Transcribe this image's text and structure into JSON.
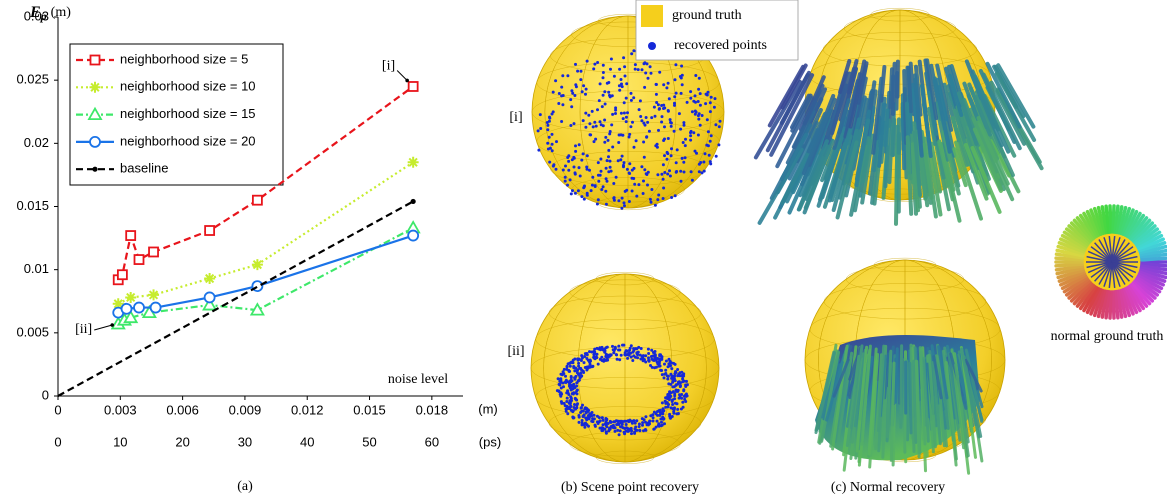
{
  "chart_data": {
    "type": "line",
    "y_label": {
      "symbol": "E",
      "subscript": "p",
      "unit": "(m)"
    },
    "x_unit": "(m)",
    "x2_unit": "(ps)",
    "x_label": "noise level",
    "caption": "(a)",
    "xlim": [
      0,
      0.0195
    ],
    "xticks": [
      0,
      0.003,
      0.006,
      0.009,
      0.012,
      0.015,
      0.018
    ],
    "x2lim": [
      0,
      65
    ],
    "x2ticks": [
      0,
      10,
      20,
      30,
      40,
      50,
      60
    ],
    "ylim": [
      0,
      0.03
    ],
    "yticks": [
      0,
      0.005,
      0.01,
      0.015,
      0.02,
      0.025,
      0.03
    ],
    "grid": false,
    "legend": "upper left",
    "annotations": [
      {
        "text": "[i]",
        "series": 0,
        "point": 7
      },
      {
        "text": "[ii]",
        "series": 2,
        "point": 0
      }
    ],
    "series": [
      {
        "name": "neighborhood size = 5",
        "color": "#e8141b",
        "marker": "square",
        "line_style": "dashed",
        "x": [
          0.0029,
          0.0031,
          0.0035,
          0.0039,
          0.0046,
          0.0073,
          0.0096,
          0.0171
        ],
        "values": [
          0.0092,
          0.0096,
          0.0127,
          0.0108,
          0.0114,
          0.0131,
          0.0155,
          0.0245
        ]
      },
      {
        "name": "neighborhood size = 10",
        "color": "#c6ec2e",
        "marker": "asterisk",
        "line_style": "dotted",
        "x": [
          0.0029,
          0.0035,
          0.0046,
          0.0073,
          0.0096,
          0.0171
        ],
        "values": [
          0.0073,
          0.0078,
          0.008,
          0.0093,
          0.0104,
          0.0185
        ]
      },
      {
        "name": "neighborhood size = 15",
        "color": "#3ee86a",
        "marker": "triangle",
        "line_style": "dashdot",
        "x": [
          0.0029,
          0.0032,
          0.0035,
          0.0044,
          0.0073,
          0.0096,
          0.0171
        ],
        "values": [
          0.0057,
          0.006,
          0.0062,
          0.0066,
          0.0072,
          0.0068,
          0.0133
        ]
      },
      {
        "name": "neighborhood size = 20",
        "color": "#1a73e8",
        "marker": "circle",
        "line_style": "solid",
        "x": [
          0.0029,
          0.0033,
          0.0039,
          0.0047,
          0.0073,
          0.0096,
          0.0171
        ],
        "values": [
          0.0066,
          0.0069,
          0.007,
          0.007,
          0.0078,
          0.0087,
          0.0127
        ]
      },
      {
        "name": "baseline",
        "color": "#000000",
        "marker": "end-dot",
        "line_style": "dashed",
        "x": [
          0,
          0.0171
        ],
        "values": [
          0,
          0.0154
        ]
      }
    ]
  },
  "figure": {
    "legend": {
      "ground_truth": "ground truth",
      "recovered_points": "recovered points"
    },
    "row_labels": [
      "[i]",
      "[ii]"
    ],
    "captions": {
      "b": "(b) Scene point recovery",
      "c": "(c) Normal recovery",
      "gt": "normal ground truth"
    }
  }
}
